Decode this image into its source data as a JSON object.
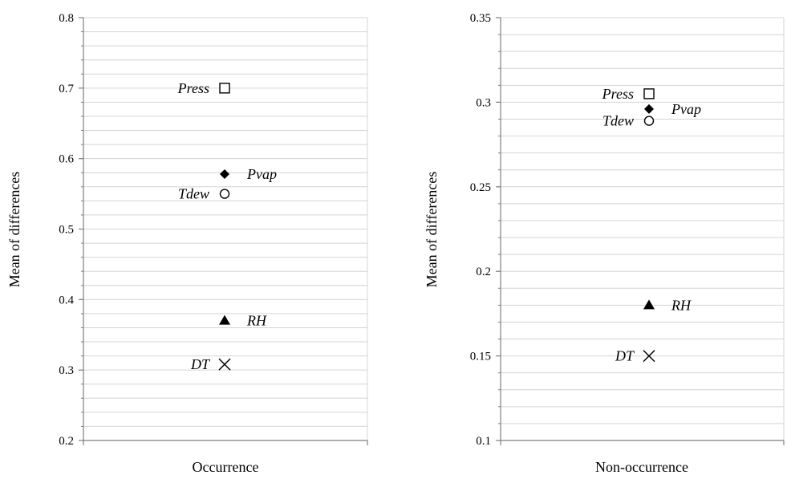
{
  "chart_data": [
    {
      "type": "scatter",
      "xlabel": "Occurrence",
      "ylabel": "Mean of differences",
      "ylim": [
        0.2,
        0.8
      ],
      "major_step": 0.1,
      "minor_step": 0.02,
      "grid": true,
      "yticks": [
        "0.2",
        "0.3",
        "0.4",
        "0.5",
        "0.6",
        "0.7",
        "0.8"
      ],
      "points": [
        {
          "label": "Press",
          "y": 0.7,
          "marker": "square-open",
          "label_side": "left"
        },
        {
          "label": "Pvap",
          "y": 0.578,
          "marker": "diamond-filled",
          "label_side": "right"
        },
        {
          "label": "Tdew",
          "y": 0.55,
          "marker": "circle-open",
          "label_side": "left"
        },
        {
          "label": "RH",
          "y": 0.37,
          "marker": "triangle-filled",
          "label_side": "right"
        },
        {
          "label": "DT",
          "y": 0.308,
          "marker": "x",
          "label_side": "left"
        }
      ]
    },
    {
      "type": "scatter",
      "xlabel": "Non-occurrence",
      "ylabel": "Mean of differences",
      "ylim": [
        0.1,
        0.35
      ],
      "major_step": 0.05,
      "minor_step": 0.01,
      "grid": true,
      "yticks": [
        "0.1",
        "0.15",
        "0.2",
        "0.25",
        "0.3",
        "0.35"
      ],
      "points": [
        {
          "label": "Press",
          "y": 0.305,
          "marker": "square-open",
          "label_side": "left"
        },
        {
          "label": "Pvap",
          "y": 0.296,
          "marker": "diamond-filled",
          "label_side": "right"
        },
        {
          "label": "Tdew",
          "y": 0.289,
          "marker": "circle-open",
          "label_side": "left"
        },
        {
          "label": "RH",
          "y": 0.18,
          "marker": "triangle-filled",
          "label_side": "right"
        },
        {
          "label": "DT",
          "y": 0.15,
          "marker": "x",
          "label_side": "left"
        }
      ]
    }
  ]
}
